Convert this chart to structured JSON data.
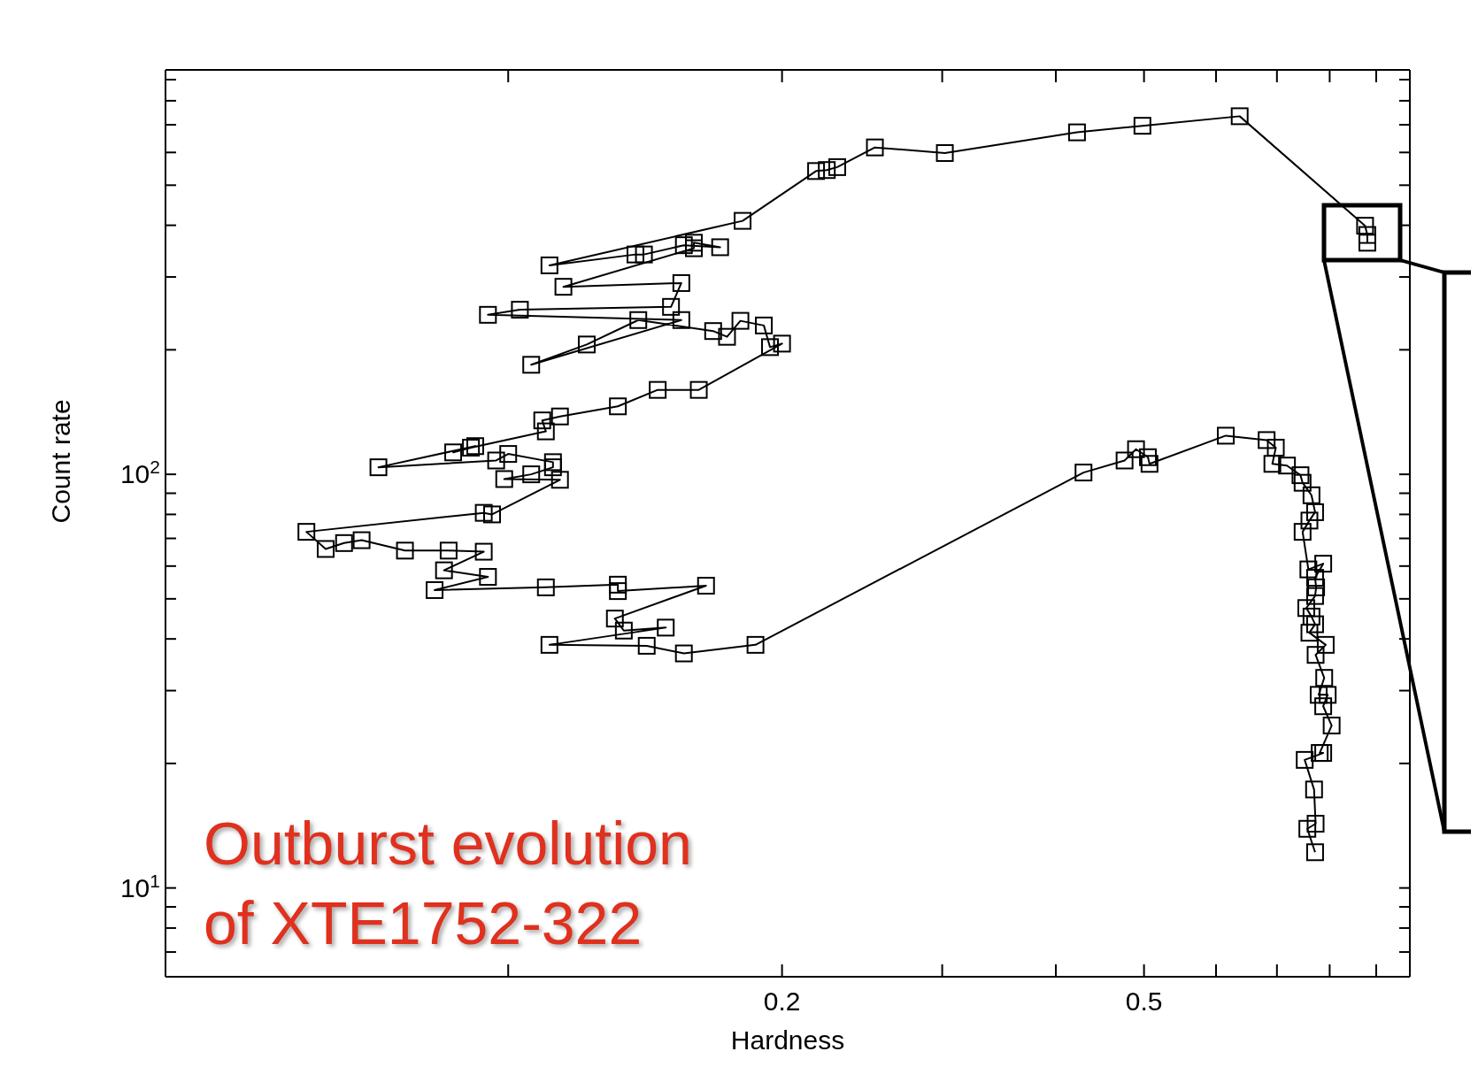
{
  "chart_data": {
    "type": "line",
    "xlabel": "Hardness",
    "ylabel": "Count rate",
    "log": "xy",
    "marker": "square",
    "line_style": "solid",
    "color": "#000000",
    "xlim": [
      0.042,
      0.98
    ],
    "ylim": [
      6.1,
      950
    ],
    "xticks": [
      {
        "value": 0.1,
        "label": null
      },
      0.2,
      {
        "value": 0.3,
        "label": null
      },
      {
        "value": 0.4,
        "label": null
      },
      0.5,
      {
        "value": 0.6,
        "label": null
      },
      {
        "value": 0.7,
        "label": null
      },
      {
        "value": 0.8,
        "label": null
      },
      {
        "value": 0.9,
        "label": null
      }
    ],
    "yticks": [
      {
        "value": 7,
        "label": null
      },
      {
        "value": 8,
        "label": null
      },
      {
        "value": 9,
        "label": null
      },
      {
        "value": 10,
        "label": "10$^{1}$"
      },
      {
        "value": 20,
        "label": null
      },
      {
        "value": 30,
        "label": null
      },
      {
        "value": 40,
        "label": null
      },
      {
        "value": 50,
        "label": null
      },
      {
        "value": 60,
        "label": null
      },
      {
        "value": 70,
        "label": null
      },
      {
        "value": 80,
        "label": null
      },
      {
        "value": 90,
        "label": null
      },
      {
        "value": 100,
        "label": "10$^{2}$"
      },
      {
        "value": 200,
        "label": null
      },
      {
        "value": 300,
        "label": null
      },
      {
        "value": 400,
        "label": null
      },
      {
        "value": 500,
        "label": null
      },
      {
        "value": 600,
        "label": null
      },
      {
        "value": 700,
        "label": null
      },
      {
        "value": 800,
        "label": null
      },
      {
        "value": 900,
        "label": null
      }
    ],
    "x": [
      0.88,
      0.88,
      0.875,
      0.637,
      0.498,
      0.422,
      0.302,
      0.253,
      0.23,
      0.224,
      0.218,
      0.181,
      0.111,
      0.138,
      0.141,
      0.156,
      0.171,
      0.16,
      0.16,
      0.115,
      0.155,
      0.151,
      0.103,
      0.095,
      0.155,
      0.106,
      0.122,
      0.139,
      0.168,
      0.174,
      0.18,
      0.191,
      0.194,
      0.2,
      0.162,
      0.146,
      0.132,
      0.114,
      0.109,
      0.11,
      0.091,
      0.087,
      0.092,
      0.072,
      0.097,
      0.1,
      0.112,
      0.112,
      0.106,
      0.099,
      0.114,
      0.096,
      0.094,
      0.06,
      0.063,
      0.066,
      0.069,
      0.077,
      0.086,
      0.094,
      0.085,
      0.095,
      0.083,
      0.11,
      0.132,
      0.132,
      0.165,
      0.131,
      0.134,
      0.149,
      0.111,
      0.142,
      0.156,
      0.187,
      0.429,
      0.476,
      0.49,
      0.505,
      0.507,
      0.615,
      0.682,
      0.698,
      0.692,
      0.718,
      0.743,
      0.747,
      0.764,
      0.771,
      0.76,
      0.747,
      0.758,
      0.787,
      0.771,
      0.773,
      0.771,
      0.754,
      0.764,
      0.771,
      0.76,
      0.792,
      0.772,
      0.789,
      0.778,
      0.796,
      0.787,
      0.804,
      0.78,
      0.787,
      0.751,
      0.769,
      0.772,
      0.756,
      0.771
    ],
    "values": [
      363,
      379,
      399,
      734,
      696,
      671,
      598,
      617,
      553,
      544,
      541,
      410,
      320,
      340,
      340,
      358,
      354,
      363,
      352,
      284,
      290,
      254,
      250,
      243,
      236,
      184,
      206,
      236,
      222,
      215,
      235,
      229,
      203,
      207,
      160,
      160,
      146,
      138,
      135,
      127,
      116,
      113,
      117,
      104,
      108,
      112,
      107,
      104,
      100,
      97.4,
      97,
      80,
      80.7,
      72.6,
      66,
      68.2,
      69.3,
      65.4,
      65.4,
      65,
      58.6,
      56.5,
      52.5,
      53.3,
      54.1,
      52.2,
      53.8,
      44.8,
      41.9,
      42.6,
      38.7,
      38.5,
      36.9,
      38.7,
      101,
      108,
      115,
      110,
      106,
      124,
      121,
      116,
      106,
      105,
      99.5,
      95.4,
      89,
      81,
      77.3,
      72.6,
      58.9,
      60.8,
      56.2,
      53.3,
      50.8,
      47.5,
      45.3,
      43.4,
      41.4,
      38.7,
      36.6,
      32.2,
      29.3,
      29.3,
      27.5,
      24.7,
      21.2,
      21.2,
      20.4,
      17.3,
      14.3,
      13.9,
      12.2
    ],
    "annotations": [
      "Outburst evolution\nof XTE1752-322"
    ]
  }
}
